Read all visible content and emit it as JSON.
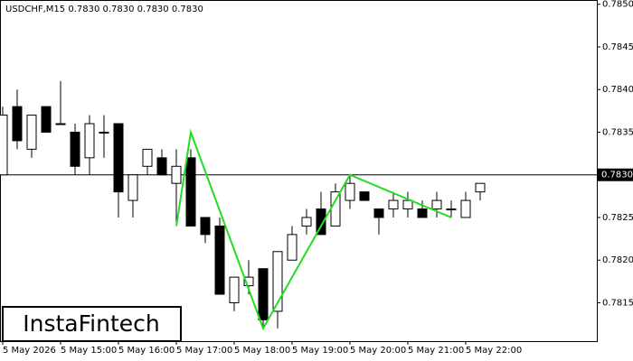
{
  "chart_data": {
    "type": "candlestick",
    "title": "USDCHF,M15  0.7830 0.7830 0.7830 0.7830",
    "watermark": "InstaFintech",
    "categories": [
      "5 May 2026",
      null,
      null,
      null,
      "5 May 15:00",
      null,
      null,
      null,
      "5 May 16:00",
      null,
      null,
      null,
      "5 May 17:00",
      null,
      null,
      null,
      "5 May 18:00",
      null,
      null,
      null,
      "5 May 19:00",
      null,
      null,
      null,
      "5 May 20:00",
      null,
      null,
      null,
      "5 May 21:00",
      null,
      null,
      null,
      "5 May 22:00",
      null
    ],
    "open": [
      0.783,
      0.7838,
      0.7833,
      0.7838,
      0.7836,
      0.7835,
      0.7832,
      0.7835,
      0.7836,
      0.7827,
      0.7831,
      0.7832,
      0.7829,
      0.7832,
      0.7825,
      0.7824,
      0.7815,
      0.7817,
      0.7819,
      0.7814,
      0.782,
      0.7824,
      0.7826,
      0.7824,
      0.7827,
      0.7828,
      0.7826,
      0.7826,
      0.7826,
      0.7826,
      0.7826,
      0.7826,
      0.7825,
      0.7828
    ],
    "high": [
      0.7838,
      0.784,
      0.7837,
      0.7838,
      0.7841,
      0.7836,
      0.7837,
      0.7837,
      0.7836,
      0.783,
      0.7833,
      0.7833,
      0.7833,
      0.7833,
      0.7825,
      0.7825,
      0.7818,
      0.782,
      0.7819,
      0.7821,
      0.7824,
      0.7826,
      0.7828,
      0.7829,
      0.783,
      0.7828,
      0.7826,
      0.7828,
      0.7828,
      0.7827,
      0.7828,
      0.7827,
      0.7828,
      0.7829
    ],
    "low": [
      0.783,
      0.7833,
      0.7832,
      0.7835,
      0.7836,
      0.783,
      0.783,
      0.7832,
      0.7825,
      0.7825,
      0.783,
      0.783,
      0.7824,
      0.7824,
      0.7822,
      0.7816,
      0.7814,
      0.7816,
      0.7812,
      0.7812,
      0.782,
      0.7823,
      0.7823,
      0.7824,
      0.7826,
      0.7827,
      0.7823,
      0.7825,
      0.7825,
      0.7825,
      0.7825,
      0.7825,
      0.7825,
      0.7827
    ],
    "close": [
      0.7837,
      0.7834,
      0.7837,
      0.7835,
      0.7836,
      0.7831,
      0.7836,
      0.7835,
      0.7828,
      0.783,
      0.7833,
      0.783,
      0.7831,
      0.7824,
      0.7823,
      0.7816,
      0.7818,
      0.7818,
      0.7813,
      0.7821,
      0.7823,
      0.7825,
      0.7823,
      0.7828,
      0.7829,
      0.7827,
      0.7825,
      0.7827,
      0.7827,
      0.7825,
      0.7827,
      0.7826,
      0.7827,
      0.7829
    ],
    "bull_color": "#ffffff",
    "bear_color": "#000000",
    "pattern": {
      "color": "#22dd22",
      "x": [
        12,
        13,
        18,
        24,
        31
      ],
      "values": [
        0.7824,
        0.7835,
        0.7812,
        0.783,
        0.7825
      ]
    },
    "current_price": {
      "value": 0.783,
      "label": "0.7830"
    },
    "ylim": [
      0.78105,
      0.78505
    ],
    "yticks": [
      {
        "value": 0.7815,
        "label": "0.7815"
      },
      {
        "value": 0.782,
        "label": "0.7820"
      },
      {
        "value": 0.7825,
        "label": "0.7825"
      },
      {
        "value": 0.783,
        "label": "0.7830"
      },
      {
        "value": 0.7835,
        "label": "0.7835"
      },
      {
        "value": 0.784,
        "label": "0.7840"
      },
      {
        "value": 0.7845,
        "label": "0.7845"
      },
      {
        "value": 0.785,
        "label": "0.7850"
      }
    ]
  }
}
